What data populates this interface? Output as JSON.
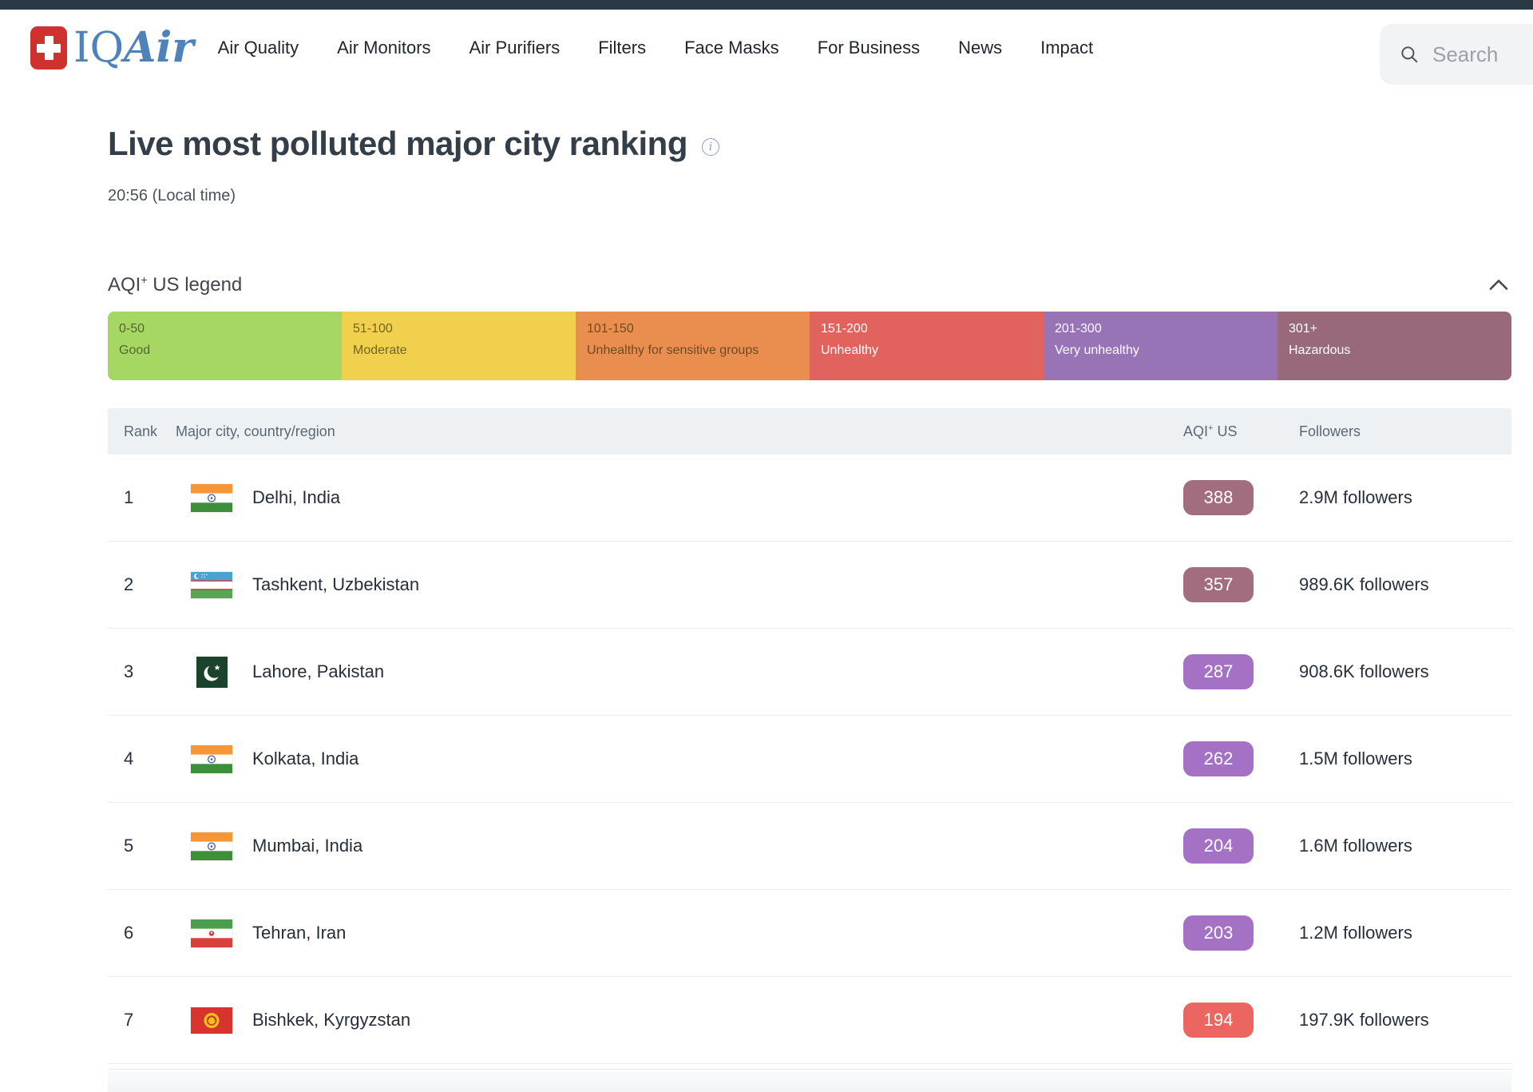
{
  "header": {
    "brand": {
      "word_iq": "IQ",
      "word_air": "Air"
    },
    "nav_items": [
      {
        "label": "Air Quality"
      },
      {
        "label": "Air Monitors"
      },
      {
        "label": "Air Purifiers"
      },
      {
        "label": "Filters"
      },
      {
        "label": "Face Masks"
      },
      {
        "label": "For Business"
      },
      {
        "label": "News"
      },
      {
        "label": "Impact"
      }
    ],
    "search_placeholder": "Search"
  },
  "page": {
    "title": "Live most polluted major city ranking",
    "info_icon_glyph": "i",
    "time": "20:56 (Local time)"
  },
  "legend": {
    "title_prefix": "AQI",
    "title_sup": "+",
    "title_suffix": " US legend",
    "bands": [
      {
        "range": "0-50",
        "label": "Good",
        "color": "#a6d763",
        "text": "dark"
      },
      {
        "range": "51-100",
        "label": "Moderate",
        "color": "#f1d04d",
        "text": "dark"
      },
      {
        "range": "101-150",
        "label": "Unhealthy for sensitive groups",
        "color": "#e98e4e",
        "text": "dark"
      },
      {
        "range": "151-200",
        "label": "Unhealthy",
        "color": "#e2625d",
        "text": "light"
      },
      {
        "range": "201-300",
        "label": "Very unhealthy",
        "color": "#9873b5",
        "text": "light"
      },
      {
        "range": "301+",
        "label": "Hazardous",
        "color": "#97697b",
        "text": "light"
      }
    ]
  },
  "table": {
    "columns": {
      "rank": "Rank",
      "city": "Major city, country/region",
      "aqi_prefix": "AQI",
      "aqi_sup": "+",
      "aqi_suffix": " US",
      "followers": "Followers"
    },
    "rows": [
      {
        "rank": "1",
        "flag": "india",
        "city": "Delhi, India",
        "aqi": "388",
        "aqi_color": "#a26e7f",
        "followers": "2.9M followers"
      },
      {
        "rank": "2",
        "flag": "uzbekistan",
        "city": "Tashkent, Uzbekistan",
        "aqi": "357",
        "aqi_color": "#a26e7f",
        "followers": "989.6K followers"
      },
      {
        "rank": "3",
        "flag": "pakistan",
        "city": "Lahore, Pakistan",
        "aqi": "287",
        "aqi_color": "#a471c5",
        "followers": "908.6K followers"
      },
      {
        "rank": "4",
        "flag": "india",
        "city": "Kolkata, India",
        "aqi": "262",
        "aqi_color": "#a471c5",
        "followers": "1.5M followers"
      },
      {
        "rank": "5",
        "flag": "india",
        "city": "Mumbai, India",
        "aqi": "204",
        "aqi_color": "#a471c5",
        "followers": "1.6M followers"
      },
      {
        "rank": "6",
        "flag": "iran",
        "city": "Tehran, Iran",
        "aqi": "203",
        "aqi_color": "#a471c5",
        "followers": "1.2M followers"
      },
      {
        "rank": "7",
        "flag": "kyrgyzstan",
        "city": "Bishkek, Kyrgyzstan",
        "aqi": "194",
        "aqi_color": "#ec6661",
        "followers": "197.9K followers"
      }
    ]
  }
}
